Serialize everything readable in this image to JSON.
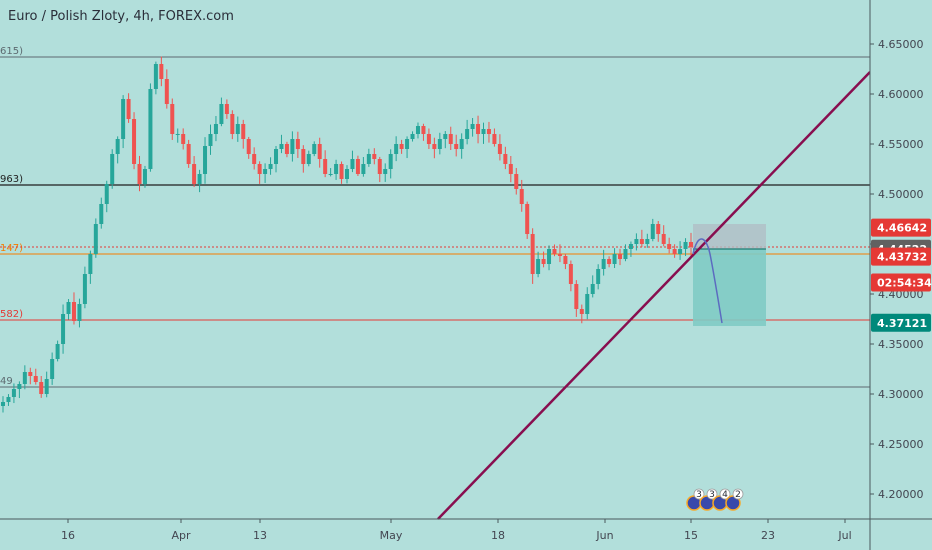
{
  "header": {
    "title": "Euro / Polish Zloty, 4h, FOREX.com"
  },
  "colors": {
    "background": "#b2dfdb",
    "up": "#26a69a",
    "down": "#ef5350",
    "trendline": "#880e4f",
    "level_black": "#1f1f1f",
    "level_gray": "#5d6a70",
    "level_orange": "#f57c00",
    "level_red": "#e53935",
    "projection": "#5c6bc0",
    "tp_zone": "#80cbc4",
    "sl_zone": "#b0bec5"
  },
  "levels": [
    {
      "price": 4.637,
      "label": "615)",
      "style": "gray"
    },
    {
      "price": 4.509,
      "label": "963)",
      "style": "black"
    },
    {
      "price": 4.44,
      "label": "147)",
      "style": "orange"
    },
    {
      "price": 4.374,
      "label": "582)",
      "style": "red"
    },
    {
      "price": 4.307,
      "label": "49",
      "style": "gray"
    }
  ],
  "price_tags": [
    {
      "price": 4.46642,
      "text": "4.46642",
      "color": "#e53935"
    },
    {
      "price": 4.44522,
      "text": "4.44522",
      "color": "#616161"
    },
    {
      "price": 4.43732,
      "text": "4.43732",
      "color": "#e53935"
    },
    {
      "price": 4.4115,
      "text": "02:54:34",
      "color": "#e53935"
    },
    {
      "price": 4.37121,
      "text": "4.37121",
      "color": "#00897b"
    }
  ],
  "events": {
    "labels": [
      "3",
      "3",
      "4",
      "2"
    ]
  },
  "chart_data": {
    "type": "line",
    "title": "Euro / Polish Zloty, 4h, FOREX.com",
    "x_tick_labels": [
      "16",
      "Apr",
      "13",
      "May",
      "18",
      "Jun",
      "15",
      "23",
      "Jul"
    ],
    "y_tick_labels": [
      "4.65000",
      "4.60000",
      "4.55000",
      "4.50000",
      "4.45000",
      "4.40000",
      "4.35000",
      "4.30000",
      "4.25000",
      "4.20000"
    ],
    "ylim": [
      4.197,
      4.675
    ],
    "grid": false,
    "series": [
      {
        "values": [
          4.292,
          4.297,
          4.305,
          4.31,
          4.322,
          4.318,
          4.312,
          4.3,
          4.315,
          4.335,
          4.35,
          4.38,
          4.392,
          4.373,
          4.39,
          4.42,
          4.44,
          4.47,
          4.49,
          4.51,
          4.54,
          4.555,
          4.595,
          4.575,
          4.53,
          4.51,
          4.525,
          4.605,
          4.63,
          4.615,
          4.59,
          4.56,
          4.56,
          4.55,
          4.53,
          4.51,
          4.52,
          4.548,
          4.56,
          4.57,
          4.59,
          4.58,
          4.56,
          4.57,
          4.555,
          4.54,
          4.53,
          4.52,
          4.525,
          4.53,
          4.545,
          4.55,
          4.54,
          4.555,
          4.545,
          4.53,
          4.54,
          4.55,
          4.535,
          4.52,
          4.52,
          4.53,
          4.515,
          4.525,
          4.535,
          4.52,
          4.53,
          4.54,
          4.535,
          4.52,
          4.525,
          4.54,
          4.55,
          4.545,
          4.555,
          4.56,
          4.568,
          4.56,
          4.55,
          4.545,
          4.555,
          4.56,
          4.55,
          4.545,
          4.555,
          4.565,
          4.57,
          4.56,
          4.565,
          4.56,
          4.55,
          4.54,
          4.53,
          4.52,
          4.505,
          4.49,
          4.46,
          4.42,
          4.435,
          4.43,
          4.445,
          4.44,
          4.438,
          4.43,
          4.41,
          4.385,
          4.38,
          4.4,
          4.41,
          4.425,
          4.435,
          4.43,
          4.44,
          4.435,
          4.445,
          4.45,
          4.455,
          4.45,
          4.455,
          4.47,
          4.46,
          4.45,
          4.445,
          4.44,
          4.445,
          4.452,
          4.447
        ]
      }
    ],
    "annotations": {
      "trendline": {
        "from": [
          4.197,
          "May"
        ],
        "to_price": 4.622
      },
      "projection_target": 4.371,
      "zone_entry": 4.445,
      "zone_stop": 4.466,
      "zone_target": 4.371
    }
  }
}
